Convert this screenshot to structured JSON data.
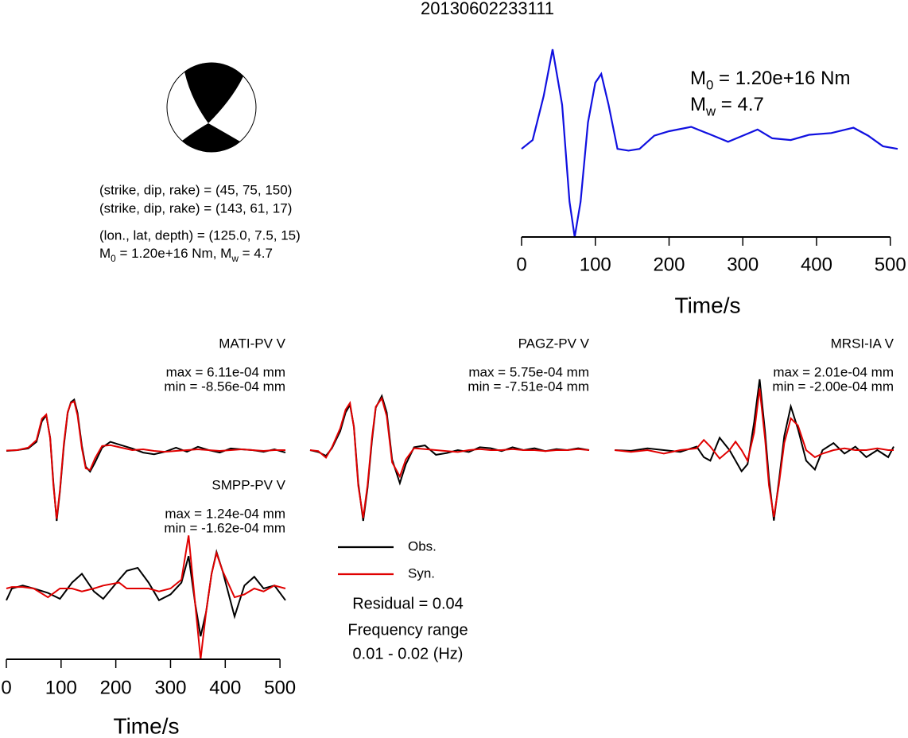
{
  "title": "20130602233111",
  "mechanism": {
    "planes": [
      "(strike, dip, rake) = (45, 75, 150)",
      "(strike, dip, rake) = (143, 61, 17)"
    ],
    "location": "(lon., lat, depth) = (125.0, 7.5, 15)",
    "moment": [
      {
        "text": "M"
      },
      {
        "sub": "0"
      },
      {
        "text": " = 1.20e+16 Nm, M"
      },
      {
        "sub": "w"
      },
      {
        "text": " = 4.7"
      }
    ]
  },
  "chart_data": [
    {
      "type": "line",
      "xlabel": "Time/s",
      "xlim": [
        0,
        510
      ],
      "xticks": [
        0,
        100,
        200,
        300,
        400,
        500
      ],
      "x": [
        0,
        15,
        30,
        42,
        55,
        65,
        72,
        80,
        90,
        100,
        108,
        118,
        130,
        145,
        160,
        180,
        200,
        230,
        260,
        280,
        300,
        320,
        340,
        365,
        390,
        420,
        450,
        470,
        490,
        510
      ],
      "series": [
        {
          "color": "#1010e0",
          "values": [
            0,
            0.1,
            0.6,
            1.13,
            0.5,
            -0.6,
            -1.0,
            -0.6,
            0.3,
            0.75,
            0.85,
            0.5,
            0.0,
            -0.02,
            0.0,
            0.15,
            0.2,
            0.25,
            0.15,
            0.08,
            0.15,
            0.22,
            0.12,
            0.1,
            0.16,
            0.18,
            0.24,
            0.15,
            0.03,
            0.0
          ]
        }
      ],
      "annotations": [
        [
          {
            "text": "M"
          },
          {
            "sub": "0"
          },
          {
            "text": " = 1.20e+16 Nm"
          }
        ],
        [
          {
            "text": "M"
          },
          {
            "sub": "w"
          },
          {
            "text": " = 4.7"
          }
        ]
      ]
    },
    {
      "type": "waveform",
      "label": "MATI-PV V",
      "max_label": "max = 6.11e-04 mm",
      "min_label": "min = -8.56e-04 mm",
      "xlim": [
        0,
        510
      ],
      "x": [
        0,
        20,
        40,
        55,
        65,
        73,
        80,
        86,
        92,
        98,
        105,
        112,
        118,
        124,
        130,
        138,
        145,
        153,
        162,
        175,
        190,
        210,
        230,
        250,
        270,
        290,
        310,
        330,
        350,
        370,
        390,
        410,
        430,
        450,
        470,
        490,
        510
      ],
      "series": [
        {
          "color": "#000000",
          "values": [
            -1e-05,
            0.0,
            2e-05,
            0.0001,
            0.00035,
            0.00042,
            0.00015,
            -0.0004,
            -0.000856,
            -0.0005,
            5e-05,
            0.00045,
            0.00058,
            0.000611,
            0.00045,
            5e-05,
            -0.0002,
            -0.00026,
            -0.00015,
            3e-05,
            0.0001,
            6e-05,
            2e-05,
            -3e-05,
            -5e-05,
            -2e-05,
            3e-05,
            -2e-05,
            4e-05,
            0.0,
            -3e-05,
            2e-05,
            1e-05,
            0.0,
            -2e-05,
            1e-05,
            -3e-05
          ]
        },
        {
          "color": "#e00000",
          "values": [
            -5e-06,
            0.0,
            3e-05,
            0.00012,
            0.00038,
            0.00043,
            0.00014,
            -0.00043,
            -0.00083,
            -0.00048,
            8e-05,
            0.00046,
            0.00057,
            0.00059,
            0.00042,
            2e-05,
            -0.00022,
            -0.00024,
            -0.0001,
            5e-05,
            6e-05,
            3e-05,
            0.0,
            1e-05,
            -1e-05,
            -2e-05,
            -1e-05,
            0.0,
            1e-05,
            0.0,
            -1e-05,
            0.0,
            1e-05,
            0.0,
            -1e-05,
            0.0,
            0.0
          ]
        }
      ]
    },
    {
      "type": "waveform",
      "label": "PAGZ-PV V",
      "max_label": "max = 5.75e-04 mm",
      "min_label": "min = -7.51e-04 mm",
      "xlim": [
        0,
        510
      ],
      "x": [
        0,
        15,
        29,
        40,
        55,
        65,
        73,
        80,
        88,
        97,
        105,
        113,
        120,
        131,
        140,
        150,
        164,
        175,
        190,
        210,
        230,
        250,
        270,
        290,
        310,
        330,
        350,
        370,
        390,
        410,
        430,
        450,
        470,
        490,
        510
      ],
      "series": [
        {
          "color": "#000000",
          "values": [
            0.0,
            -2e-05,
            -6e-05,
            2e-05,
            0.0002,
            0.0004,
            0.00048,
            0.00025,
            -0.00035,
            -0.000751,
            -0.0004,
            0.0001,
            0.00045,
            0.000575,
            0.0004,
            -0.0001,
            -0.00035,
            -0.00015,
            3e-05,
            5e-05,
            -5e-05,
            -3e-05,
            0.0,
            -2e-05,
            3e-05,
            2e-05,
            -1e-05,
            3e-05,
            0.0,
            2e-05,
            -1e-05,
            1e-05,
            0.0,
            2e-05,
            0.0
          ]
        },
        {
          "color": "#e00000",
          "values": [
            0.0,
            -1e-05,
            -8e-05,
            3e-05,
            0.00023,
            0.00043,
            0.0005,
            0.00024,
            -0.00038,
            -0.00072,
            -0.00037,
            0.00013,
            0.00046,
            0.00055,
            0.00036,
            -0.00013,
            -0.00028,
            -0.0001,
            2e-05,
            1e-05,
            0.0,
            -1e-05,
            -2e-05,
            0.0,
            1e-05,
            0.0,
            0.0,
            1e-05,
            0.0,
            0.0,
            -1e-05,
            0.0,
            0.0,
            1e-05,
            0.0
          ]
        }
      ]
    },
    {
      "type": "waveform",
      "label": "MRSI-IA V",
      "max_label": "max = 2.01e-04 mm",
      "min_label": "min = -2.00e-04 mm",
      "xlim": [
        0,
        510
      ],
      "x": [
        0,
        30,
        60,
        90,
        120,
        150,
        163,
        175,
        192,
        210,
        221,
        232,
        243,
        255,
        265,
        275,
        282,
        291,
        300,
        310,
        322,
        335,
        350,
        366,
        380,
        400,
        420,
        440,
        460,
        480,
        500,
        510
      ],
      "series": [
        {
          "color": "#000000",
          "values": [
            0.0,
            -2e-06,
            5e-06,
            0.0,
            -5e-06,
            1e-05,
            -2e-05,
            -3e-05,
            3.5e-05,
            0.0,
            -3e-05,
            -6e-05,
            -4e-05,
            8e-05,
            0.000201,
            5e-05,
            -8e-05,
            -0.0002,
            -9e-05,
            4e-05,
            0.000124,
            6e-05,
            -3e-05,
            -5.5e-05,
            0.0,
            2e-05,
            -1e-05,
            1e-05,
            -2e-05,
            0.0,
            -2e-05,
            1e-05
          ]
        },
        {
          "color": "#e00000",
          "values": [
            0.0,
            -5e-06,
            0.0,
            -1e-05,
            0.0,
            5e-06,
            2.9e-05,
            1e-05,
            -2.4e-05,
            0.0,
            2.4e-05,
            0.0,
            -3e-05,
            5e-05,
            0.000175,
            3e-05,
            -0.0001,
            -0.00019,
            -0.0001,
            2e-05,
            9e-05,
            7e-05,
            0.0,
            -2e-05,
            -1e-05,
            0.0,
            5e-06,
            0.0,
            0.0,
            5e-06,
            0.0,
            0.0
          ]
        }
      ]
    },
    {
      "type": "waveform",
      "label": "SMPP-PV V",
      "max_label": "max = 1.24e-04 mm",
      "min_label": "min = -1.62e-04 mm",
      "xlabel": "Time/s",
      "xlim": [
        0,
        510
      ],
      "xticks": [
        0,
        100,
        200,
        300,
        400,
        500
      ],
      "x": [
        0,
        10,
        30,
        50,
        76,
        98,
        120,
        138,
        160,
        177,
        206,
        220,
        240,
        260,
        279,
        300,
        320,
        333,
        345,
        355,
        365,
        375,
        384,
        395,
        417,
        435,
        453,
        470,
        490,
        510
      ],
      "series": [
        {
          "color": "#000000",
          "values": [
            -4e-05,
            0.0,
            1e-05,
            0.0,
            -1.5e-05,
            -3.5e-05,
            2e-05,
            5e-05,
            -1e-05,
            -3.5e-05,
            3e-05,
            6e-05,
            7e-05,
            2e-05,
            -4e-05,
            -2e-05,
            2e-05,
            0.00011,
            -5e-05,
            -0.000162,
            -8e-05,
            5e-05,
            0.000124,
            6e-05,
            -9.5e-05,
            1e-05,
            4e-05,
            0.0,
            1e-05,
            -4e-05
          ]
        },
        {
          "color": "#e00000",
          "values": [
            0.0,
            5e-06,
            5e-06,
            0.0,
            -3e-05,
            0.0,
            0.0,
            -1e-05,
            0.0,
            1e-05,
            2e-05,
            0.0,
            0.0,
            0.0,
            -1e-05,
            0.0,
            3e-05,
            0.00018,
            -5e-05,
            -0.00024,
            -8e-05,
            5e-05,
            0.00012,
            6e-05,
            -3e-05,
            -2e-05,
            0.0,
            -1e-05,
            1e-05,
            0.0
          ]
        }
      ]
    }
  ],
  "legend": [
    {
      "name": "Obs.",
      "color": "#000000"
    },
    {
      "name": "Syn.",
      "color": "#e00000"
    }
  ],
  "residual": "Residual = 0.04",
  "frequency": [
    "Frequency range",
    "0.01 - 0.02 (Hz)"
  ]
}
